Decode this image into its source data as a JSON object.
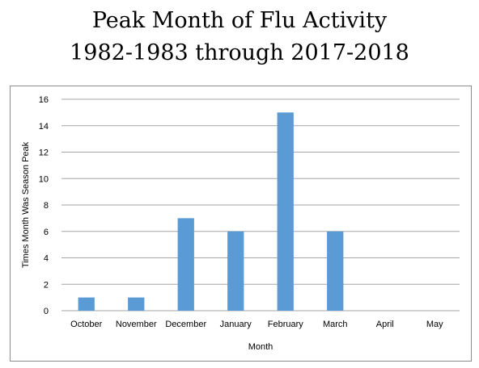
{
  "chart_data": {
    "type": "bar",
    "title_lines": [
      "Peak Month of Flu Activity",
      "1982-1983 through 2017-2018"
    ],
    "categories": [
      "October",
      "November",
      "December",
      "January",
      "February",
      "March",
      "April",
      "May"
    ],
    "values": [
      1,
      1,
      7,
      6,
      15,
      6,
      0,
      0
    ],
    "xlabel": "Month",
    "ylabel": "Times Month Was Season Peak",
    "ylim": [
      0,
      16
    ],
    "yticks": [
      "0",
      "2",
      "4",
      "6",
      "8",
      "10",
      "12",
      "14",
      "16"
    ],
    "grid": true,
    "legend": "none",
    "bar_color": "#5b9bd5"
  }
}
